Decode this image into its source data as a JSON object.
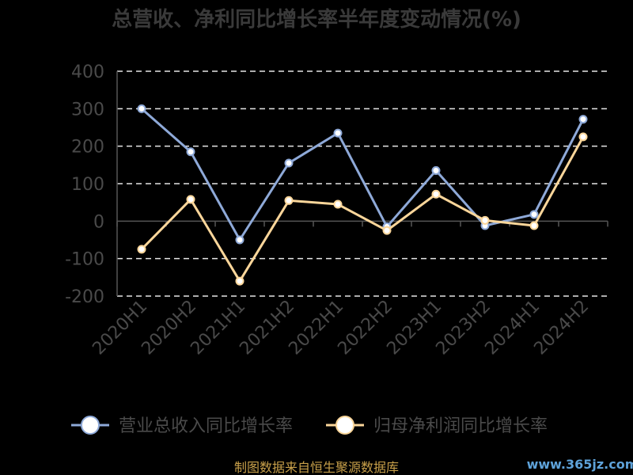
{
  "chart_data": {
    "type": "line",
    "title": "总营收、净利同比增长率半年度变动情况(%)",
    "categories": [
      "2020H1",
      "2020H2",
      "2021H1",
      "2021H2",
      "2022H1",
      "2022H2",
      "2023H1",
      "2023H2",
      "2024H1",
      "2024H2"
    ],
    "series": [
      {
        "name": "营业总收入同比增长率",
        "color": "#8ea9d8",
        "values": [
          300,
          185,
          -50,
          155,
          235,
          -15,
          135,
          -12,
          18,
          272
        ]
      },
      {
        "name": "归母净利润同比增长率",
        "color": "#fbd69a",
        "values": [
          -75,
          58,
          -160,
          55,
          45,
          -25,
          72,
          2,
          -12,
          225
        ]
      }
    ],
    "yticks": [
      400,
      300,
      200,
      100,
      0,
      -100,
      -200
    ],
    "ylim": [
      -200,
      400
    ],
    "grid": true,
    "legend_position": "bottom"
  },
  "footer": "制图数据来自恒生聚源数据库",
  "watermark": "www.365jz.com"
}
